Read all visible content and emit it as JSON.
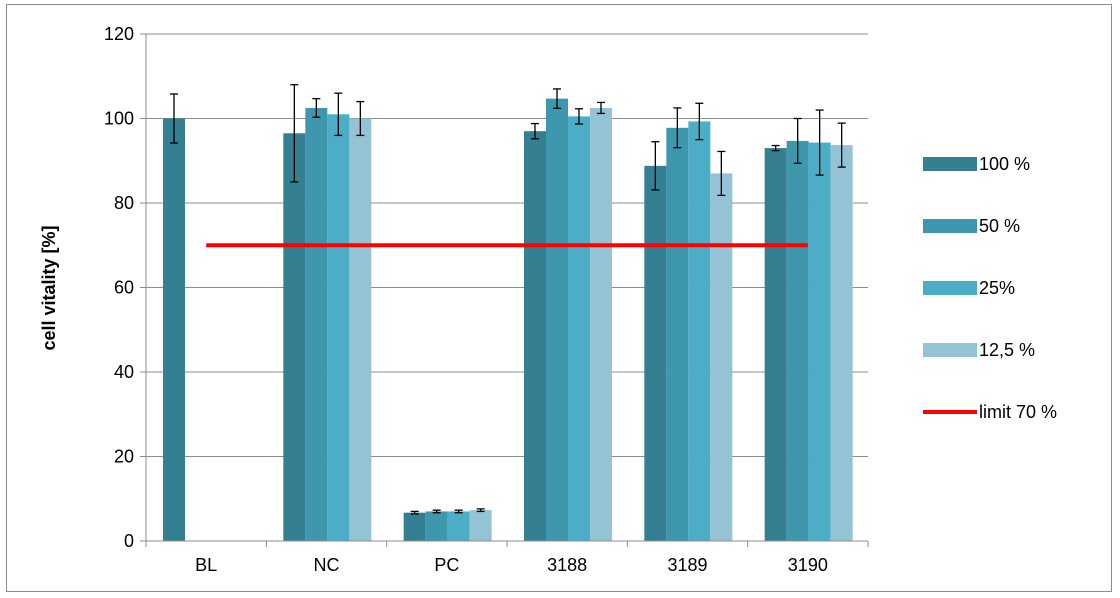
{
  "chart_data": {
    "type": "bar",
    "title": "",
    "xlabel": "",
    "ylabel": "cell vitality [%]",
    "ylim": [
      0,
      120
    ],
    "yticks": [
      0,
      20,
      40,
      60,
      80,
      100,
      120
    ],
    "grid": true,
    "legend_position": "right",
    "categories": [
      "BL",
      "NC",
      "PC",
      "3188",
      "3189",
      "3190"
    ],
    "series": [
      {
        "name": "100 %",
        "color": "#357f92",
        "values": [
          100,
          96.5,
          6.7,
          97,
          88.8,
          93
        ],
        "errors": [
          5.8,
          11.5,
          0.3,
          1.8,
          5.7,
          0.6
        ]
      },
      {
        "name": "50 %",
        "color": "#3f97ad",
        "values": [
          null,
          102.5,
          7,
          104.7,
          97.8,
          94.7
        ],
        "errors": [
          null,
          2.2,
          0.3,
          2.3,
          4.7,
          5.3
        ]
      },
      {
        "name": "25%",
        "color": "#4badc6",
        "values": [
          null,
          101,
          7,
          100.5,
          99.3,
          94.3
        ],
        "errors": [
          null,
          5,
          0.3,
          1.8,
          4.3,
          7.7
        ]
      },
      {
        "name": "12,5 %",
        "color": "#93c3d4",
        "values": [
          null,
          100,
          7.3,
          102.5,
          87,
          93.7
        ],
        "errors": [
          null,
          4,
          0.3,
          1.3,
          5.2,
          5.2
        ]
      }
    ],
    "reference_line": {
      "name": "limit 70 %",
      "value": 70,
      "color": "#ff0000",
      "from_category": "BL",
      "to_category": "3190"
    }
  }
}
